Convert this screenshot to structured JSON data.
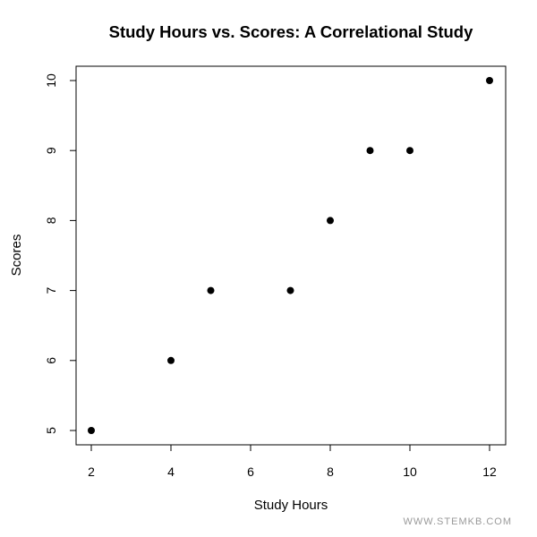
{
  "chart_data": {
    "type": "scatter",
    "title": "Study Hours vs. Scores: A Correlational Study",
    "xlabel": "Study Hours",
    "ylabel": "Scores",
    "x": [
      2,
      4,
      5,
      7,
      8,
      9,
      10,
      12
    ],
    "y": [
      5,
      6,
      7,
      7,
      8,
      9,
      9,
      10
    ],
    "xticks": [
      2,
      4,
      6,
      8,
      10,
      12
    ],
    "yticks": [
      5,
      6,
      7,
      8,
      9,
      10
    ],
    "xlim": [
      2,
      12
    ],
    "ylim": [
      5,
      10
    ],
    "grid": false,
    "legend": null,
    "marker": {
      "shape": "filled-circle",
      "color": "#000000"
    }
  },
  "watermark": "WWW.STEMKB.COM"
}
